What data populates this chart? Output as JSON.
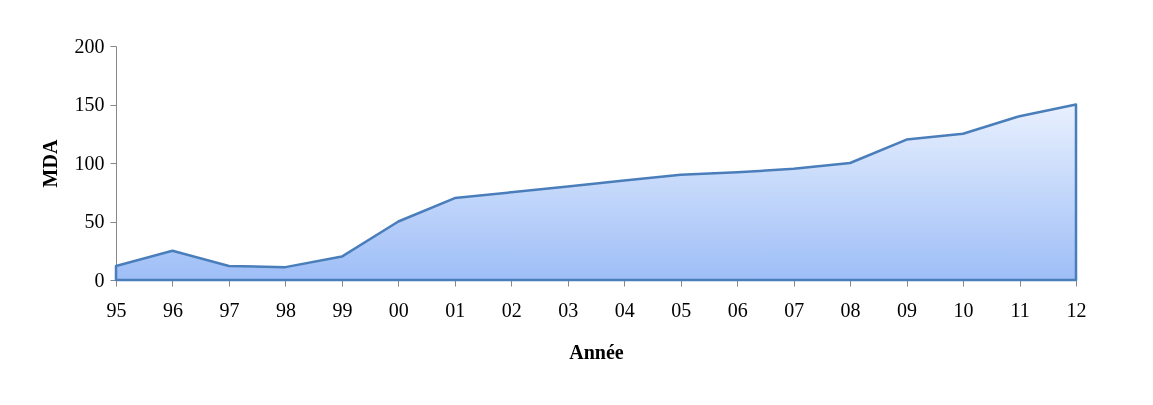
{
  "chart_data": {
    "type": "area",
    "xlabel": "Année",
    "ylabel": "MDA",
    "categories": [
      "95",
      "96",
      "97",
      "98",
      "99",
      "00",
      "01",
      "02",
      "03",
      "04",
      "05",
      "06",
      "07",
      "08",
      "09",
      "10",
      "11",
      "12"
    ],
    "series": [
      {
        "color": "#4a7ebb",
        "values": [
          12,
          25,
          12,
          11,
          20,
          50,
          70,
          75,
          80,
          85,
          90,
          92,
          95,
          100,
          120,
          125,
          140,
          150
        ]
      }
    ],
    "ylim": [
      0,
      200
    ],
    "yticks": [
      0,
      50,
      100,
      150,
      200
    ],
    "grid": false
  }
}
